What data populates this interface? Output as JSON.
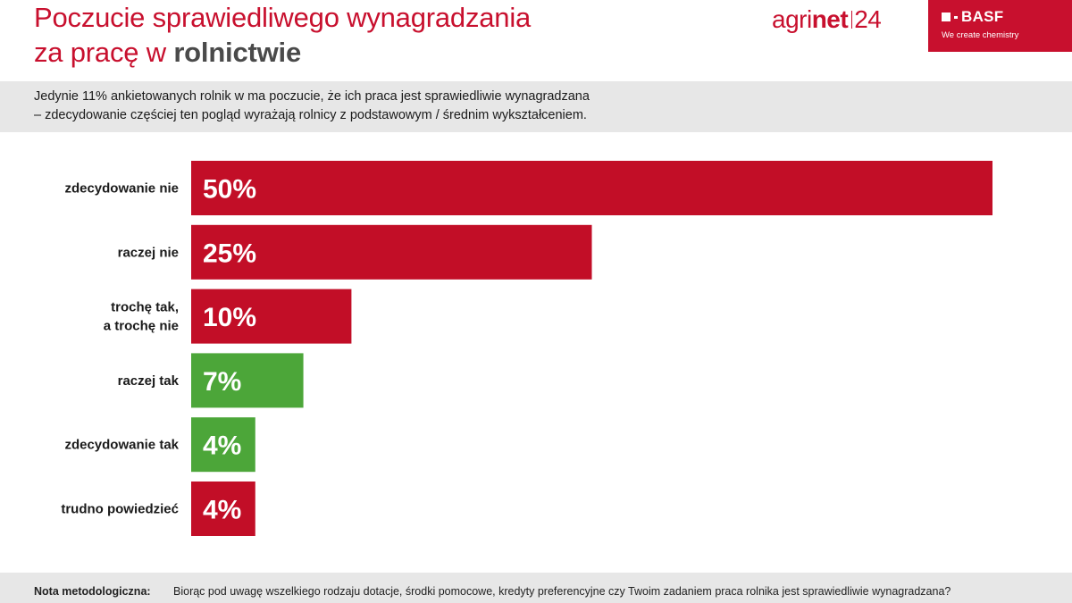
{
  "header": {
    "title_line1": "Poczucie sprawiedliwego wynagradzania",
    "title_line2_prefix": "za pracę w ",
    "title_line2_bold": "rolnictwie",
    "brand_agri": "agri",
    "brand_net": "net",
    "brand_num": "24",
    "basf_name": "BASF",
    "basf_tagline": "We create chemistry"
  },
  "subtitle": {
    "line1": "Jedynie 11% ankietowanych rolnik  w ma poczucie, że ich praca jest sprawiedliwie wynagradzana",
    "line2": "– zdecydowanie częściej ten pogląd wyrażają rolnicy z podstawowym / średnim wykształceniem."
  },
  "colors": {
    "negative": "#c20e27",
    "positive": "#4ca639",
    "accent": "#c8102e"
  },
  "chart_data": {
    "type": "bar",
    "orientation": "horizontal",
    "categories": [
      [
        "zdecydowanie nie"
      ],
      [
        "raczej nie"
      ],
      [
        "trochę tak,",
        "a trochę nie"
      ],
      [
        "raczej tak"
      ],
      [
        "zdecydowanie tak"
      ],
      [
        "trudno powiedzieć"
      ]
    ],
    "values": [
      50,
      25,
      10,
      7,
      4,
      4
    ],
    "value_labels": [
      "50%",
      "25%",
      "10%",
      "7%",
      "4%",
      "4%"
    ],
    "bar_colors": [
      "negative",
      "negative",
      "negative",
      "positive",
      "positive",
      "negative"
    ],
    "xlim": [
      0,
      50
    ],
    "grid": false,
    "legend": "none"
  },
  "footer": {
    "label": "Nota metodologiczna:",
    "text": "Biorąc pod uwagę wszelkiego rodzaju dotacje, środki pomocowe, kredyty preferencyjne czy Twoim zadaniem praca rolnika jest sprawiedliwie wynagradzana?"
  }
}
